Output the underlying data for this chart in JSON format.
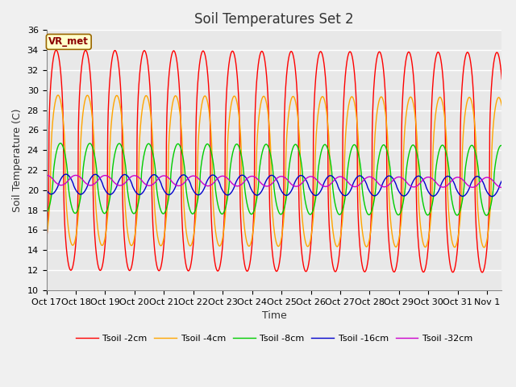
{
  "title": "Soil Temperatures Set 2",
  "xlabel": "Time",
  "ylabel": "Soil Temperature (C)",
  "ylim": [
    10,
    36
  ],
  "yticks": [
    10,
    12,
    14,
    16,
    18,
    20,
    22,
    24,
    26,
    28,
    30,
    32,
    34,
    36
  ],
  "xtick_labels": [
    "Oct 17",
    "Oct 18",
    "Oct 19",
    "Oct 20",
    "Oct 21",
    "Oct 22",
    "Oct 23",
    "Oct 24",
    "Oct 25",
    "Oct 26",
    "Oct 27",
    "Oct 28",
    "Oct 29",
    "Oct 30",
    "Oct 31",
    "Nov 1"
  ],
  "annotation_text": "VR_met",
  "plot_bg_color": "#e8e8e8",
  "fig_bg_color": "#f0f0f0",
  "lines": [
    {
      "label": "Tsoil -2cm",
      "color": "#ff0000",
      "amplitude": 11.0,
      "mean": 23.0,
      "phase_hrs": 2.0,
      "lw": 1.0
    },
    {
      "label": "Tsoil -4cm",
      "color": "#ffa500",
      "amplitude": 7.5,
      "mean": 22.0,
      "phase_hrs": 3.5,
      "lw": 1.0
    },
    {
      "label": "Tsoil -8cm",
      "color": "#00cc00",
      "amplitude": 3.5,
      "mean": 21.2,
      "phase_hrs": 5.5,
      "lw": 1.0
    },
    {
      "label": "Tsoil -16cm",
      "color": "#0000cc",
      "amplitude": 1.0,
      "mean": 20.6,
      "phase_hrs": 10.0,
      "lw": 1.0
    },
    {
      "label": "Tsoil -32cm",
      "color": "#cc00cc",
      "amplitude": 0.5,
      "mean": 21.0,
      "phase_hrs": 18.0,
      "lw": 1.0
    }
  ],
  "num_days": 15.5,
  "hrs_per_day": 24,
  "points_per_hr": 6,
  "title_fontsize": 12,
  "axis_label_fontsize": 9,
  "tick_fontsize": 8
}
